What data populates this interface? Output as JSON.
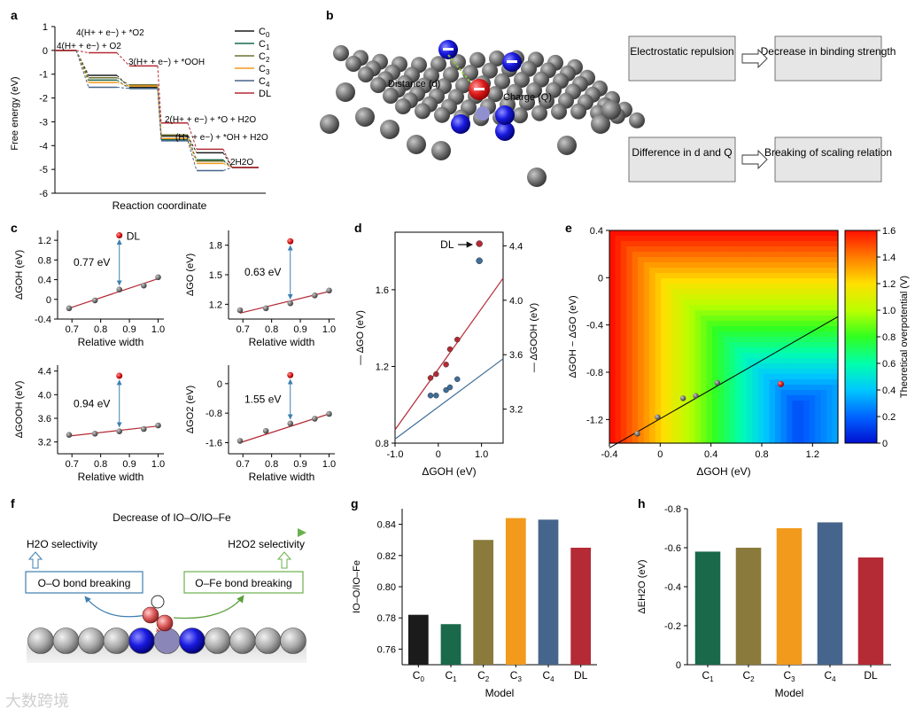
{
  "panels": {
    "a": {
      "label": "a",
      "xlabel": "Reaction coordinate",
      "ylabel": "Free energy (eV)",
      "yticks": [
        "1",
        "0",
        "-1",
        "-2",
        "-3",
        "-4",
        "-5",
        "-6"
      ],
      "legend": [
        "C0",
        "C1",
        "C2",
        "C3",
        "C4",
        "DL"
      ],
      "annotations": [
        "4(H+ + e−) + *O2",
        "4(H+ + e−) + O2",
        "3(H+ + e−) + *OOH",
        "2(H+ + e−) + *O + H2O",
        "(H+ + e−) + *OH + H2O",
        "2H2O"
      ],
      "colors": [
        "#1b1b1b",
        "#19694a",
        "#6f7030",
        "#f29a1c",
        "#46658c",
        "#b42a35"
      ]
    },
    "b": {
      "label": "b",
      "labels": [
        "Distance (d)",
        "Charge (Q)"
      ],
      "boxes": [
        "Electrostatic repulsion",
        "Decrease in binding strength",
        "Difference in d and Q",
        "Breaking of scaling relation"
      ]
    },
    "c": {
      "label": "c",
      "dl_label": "DL",
      "xlabel": "Relative width",
      "xticks": [
        "0.7",
        "0.8",
        "0.9",
        "1.0"
      ],
      "sub": [
        {
          "ylabel": "ΔGOH (eV)",
          "diff": "0.77 eV",
          "yticks": [
            "1.2",
            "0.8",
            "0.4",
            "0",
            "-0.4"
          ]
        },
        {
          "ylabel": "ΔGO (eV)",
          "diff": "0.63 eV",
          "yticks": [
            "1.8",
            "1.5",
            "1.2"
          ]
        },
        {
          "ylabel": "ΔGOOH (eV)",
          "diff": "0.94 eV",
          "yticks": [
            "4.4",
            "4.0",
            "3.6",
            "3.2"
          ]
        },
        {
          "ylabel": "ΔGO2 (eV)",
          "diff": "1.55 eV",
          "yticks": [
            "0",
            "-0.8",
            "-1.6"
          ]
        }
      ]
    },
    "d": {
      "label": "d",
      "dl_label": "DL",
      "xlabel": "ΔGOH (eV)",
      "ylabel_left": "ΔGO (eV)",
      "ylabel_right": "ΔGOOH (eV)",
      "xticks": [
        "-1.0",
        "0",
        "1.0"
      ],
      "yticks_left": [
        "1.6",
        "1.2",
        "0.8"
      ],
      "yticks_right": [
        "4.4",
        "4.0",
        "3.6",
        "3.2"
      ]
    },
    "e": {
      "label": "e",
      "xlabel": "ΔGOH (eV)",
      "ylabel": "ΔGOH − ΔGO (eV)",
      "xticks": [
        "-0.4",
        "0",
        "0.4",
        "0.8",
        "1.2"
      ],
      "yticks": [
        "0.4",
        "0",
        "-0.4",
        "-0.8",
        "-1.2"
      ],
      "colorbar_label": "Theoretical overpotential (V)",
      "colorbar_ticks": [
        "1.6",
        "1.4",
        "1.2",
        "1.0",
        "0.8",
        "0.6",
        "0.4",
        "0.2",
        "0"
      ]
    },
    "f": {
      "label": "f",
      "arrow_text": "Decrease of IO–O/IO–Fe",
      "left_sel": "H2O selectivity",
      "right_sel": "H2O2 selectivity",
      "left_box": "O–O bond breaking",
      "right_box": "O–Fe bond breaking"
    },
    "g": {
      "label": "g",
      "xlabel": "Model",
      "ylabel": "IO–O/IO–Fe"
    },
    "h": {
      "label": "h",
      "xlabel": "Model",
      "ylabel": "ΔEH2O (eV)"
    }
  },
  "chart_data": [
    {
      "id": "c1",
      "type": "scatter",
      "title": "",
      "xlabel": "Relative width",
      "ylabel": "ΔGOH (eV)",
      "xlim": [
        0.65,
        1.02
      ],
      "ylim": [
        -0.4,
        1.4
      ],
      "x": [
        0.69,
        0.78,
        0.865,
        0.95,
        1.0
      ],
      "y": [
        -0.18,
        -0.02,
        0.2,
        0.28,
        0.45
      ],
      "dl": {
        "x": 0.865,
        "y": 1.3
      },
      "fit": [
        [
          0.69,
          -0.18
        ],
        [
          1.0,
          0.42
        ]
      ]
    },
    {
      "id": "c2",
      "type": "scatter",
      "title": "",
      "xlabel": "Relative width",
      "ylabel": "ΔGO (eV)",
      "xlim": [
        0.65,
        1.02
      ],
      "ylim": [
        1.05,
        1.95
      ],
      "x": [
        0.69,
        0.78,
        0.865,
        0.95,
        1.0
      ],
      "y": [
        1.14,
        1.16,
        1.21,
        1.29,
        1.34
      ],
      "dl": {
        "x": 0.865,
        "y": 1.84
      },
      "fit": [
        [
          0.69,
          1.11
        ],
        [
          1.0,
          1.33
        ]
      ]
    },
    {
      "id": "c3",
      "type": "scatter",
      "title": "",
      "xlabel": "Relative width",
      "ylabel": "ΔGOOH (eV)",
      "xlim": [
        0.65,
        1.02
      ],
      "ylim": [
        3.0,
        4.5
      ],
      "x": [
        0.69,
        0.78,
        0.865,
        0.95,
        1.0
      ],
      "y": [
        3.32,
        3.34,
        3.38,
        3.42,
        3.48
      ],
      "dl": {
        "x": 0.865,
        "y": 4.32
      },
      "fit": [
        [
          0.69,
          3.3
        ],
        [
          1.0,
          3.47
        ]
      ]
    },
    {
      "id": "c4",
      "type": "scatter",
      "title": "",
      "xlabel": "Relative width",
      "ylabel": "ΔGO2 (eV)",
      "xlim": [
        0.65,
        1.02
      ],
      "ylim": [
        -1.9,
        0.5
      ],
      "x": [
        0.69,
        0.78,
        0.865,
        0.95,
        1.0
      ],
      "y": [
        -1.55,
        -1.28,
        -1.08,
        -0.95,
        -0.82
      ],
      "dl": {
        "x": 0.865,
        "y": 0.23
      },
      "fit": [
        [
          0.69,
          -1.6
        ],
        [
          1.0,
          -0.82
        ]
      ]
    },
    {
      "id": "d",
      "type": "scatter",
      "title": "",
      "xlabel": "ΔGOH (eV)",
      "ylabel": "ΔGO (eV)",
      "ylabel_right": "ΔGOOH (eV)",
      "xlim": [
        -1.0,
        1.5
      ],
      "ylim": [
        0.8,
        1.9
      ],
      "ylim_right": [
        2.95,
        4.5
      ],
      "series": [
        {
          "name": "ΔGO",
          "color": "#b42a35",
          "axis": "left",
          "x": [
            -0.18,
            -0.05,
            0.18,
            0.27,
            0.44
          ],
          "y": [
            1.14,
            1.16,
            1.21,
            1.29,
            1.34
          ],
          "fit": [
            [
              -1.0,
              0.87
            ],
            [
              1.5,
              1.66
            ]
          ],
          "dl": {
            "x": 0.95,
            "y": 1.84
          }
        },
        {
          "name": "ΔGOOH",
          "color": "#3e6e99",
          "axis": "right",
          "x": [
            -0.18,
            -0.05,
            0.18,
            0.27,
            0.44
          ],
          "y": [
            3.3,
            3.3,
            3.34,
            3.36,
            3.42
          ],
          "fit": [
            [
              -1.0,
              2.98
            ],
            [
              1.5,
              3.57
            ]
          ],
          "dl": {
            "x": 0.95,
            "y": 4.29
          }
        }
      ]
    },
    {
      "id": "e",
      "type": "heatmap",
      "title": "",
      "xlabel": "ΔGOH (eV)",
      "ylabel": "ΔGOH − ΔGO (eV)",
      "xlim": [
        -0.4,
        1.4
      ],
      "ylim": [
        -1.4,
        0.4
      ],
      "zlim": [
        0,
        1.6
      ],
      "zlabel": "Theoretical overpotential (V)",
      "points": {
        "x": [
          -0.18,
          -0.02,
          0.18,
          0.28,
          0.45
        ],
        "y": [
          -1.32,
          -1.18,
          -1.02,
          -1.0,
          -0.89
        ]
      },
      "dl": {
        "x": 0.95,
        "y": -0.9
      },
      "fit": [
        [
          -0.4,
          -1.44
        ],
        [
          1.4,
          -0.33
        ]
      ]
    },
    {
      "id": "a",
      "type": "line",
      "title": "",
      "xlabel": "Reaction coordinate",
      "ylabel": "Free energy (eV)",
      "ylim": [
        -6,
        1
      ],
      "steps": [
        "O2",
        "*O2",
        "*OOH",
        "*O",
        "*OH",
        "H2O"
      ],
      "series": [
        {
          "name": "C0",
          "color": "#1b1b1b",
          "values": [
            0,
            -1.05,
            -1.55,
            -3.6,
            -4.3,
            -4.92
          ]
        },
        {
          "name": "C1",
          "color": "#19694a",
          "values": [
            0,
            -1.25,
            -1.6,
            -3.75,
            -4.6,
            -4.92
          ]
        },
        {
          "name": "C2",
          "color": "#6f7030",
          "values": [
            0,
            -1.15,
            -1.45,
            -3.55,
            -4.65,
            -4.92
          ]
        },
        {
          "name": "C3",
          "color": "#f29a1c",
          "values": [
            0,
            -1.35,
            -1.5,
            -3.7,
            -4.75,
            -4.92
          ]
        },
        {
          "name": "C4",
          "color": "#46658c",
          "values": [
            0,
            -1.55,
            -1.6,
            -3.8,
            -5.05,
            -4.92
          ]
        },
        {
          "name": "DL",
          "color": "#b42a35",
          "values": [
            0,
            -0.1,
            -0.65,
            -3.05,
            -4.15,
            -4.92
          ]
        }
      ]
    },
    {
      "id": "g",
      "type": "bar",
      "title": "",
      "xlabel": "Model",
      "ylabel": "IO–O/IO–Fe",
      "categories": [
        "C0",
        "C1",
        "C2",
        "C3",
        "C4",
        "DL"
      ],
      "values": [
        0.782,
        0.776,
        0.83,
        0.844,
        0.843,
        0.825
      ],
      "colors": [
        "#1b1b1b",
        "#19694a",
        "#8a7a3c",
        "#f29a1c",
        "#46658c",
        "#b42a35"
      ],
      "ylim": [
        0.75,
        0.85
      ],
      "yticks": [
        "0.84",
        "0.82",
        "0.80",
        "0.78",
        "0.76"
      ]
    },
    {
      "id": "h",
      "type": "bar",
      "title": "",
      "xlabel": "Model",
      "ylabel": "ΔEH2O (eV)",
      "categories": [
        "C1",
        "C2",
        "C3",
        "C4",
        "DL"
      ],
      "values": [
        -0.58,
        -0.6,
        -0.7,
        -0.73,
        -0.55
      ],
      "colors": [
        "#19694a",
        "#8a7a3c",
        "#f29a1c",
        "#46658c",
        "#b42a35"
      ],
      "ylim": [
        -0.8,
        0
      ],
      "yticks": [
        "-0.8",
        "-0.6",
        "-0.4",
        "-0.2",
        "0"
      ]
    }
  ],
  "watermark": "大数跨境"
}
